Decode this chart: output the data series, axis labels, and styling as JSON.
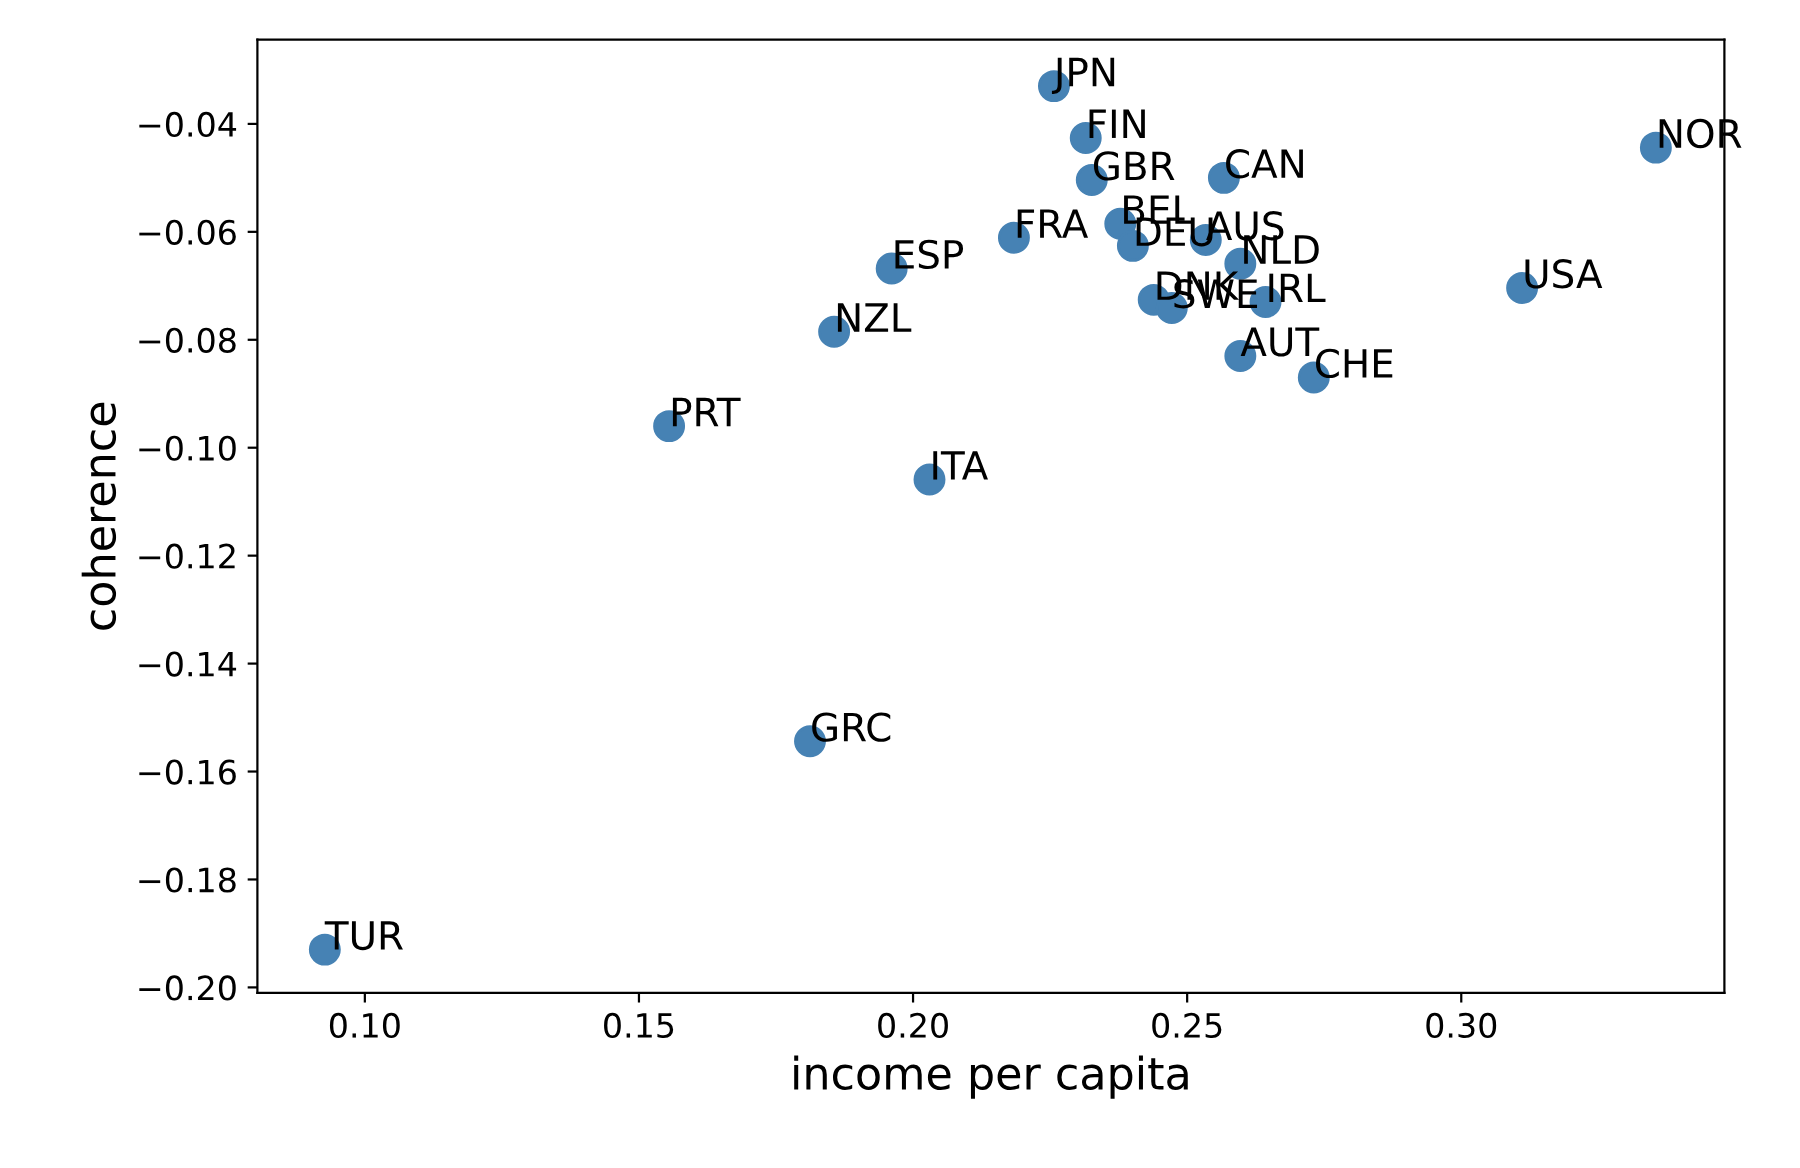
{
  "chart_data": {
    "type": "scatter",
    "xlabel": "income per capita",
    "ylabel": "coherence",
    "x": [
      0.2257,
      0.2315,
      0.2326,
      0.2567,
      0.2184,
      0.2378,
      0.2401,
      0.2534,
      0.2597,
      0.2439,
      0.2472,
      0.2643,
      0.2597,
      0.2731,
      0.3111,
      0.3355,
      0.1961,
      0.1856,
      0.1555,
      0.203,
      0.1812,
      0.0927
    ],
    "series": [
      {
        "color": "#4682b4",
        "values": [
          -0.033,
          -0.0426,
          -0.0504,
          -0.05,
          -0.0611,
          -0.0585,
          -0.0626,
          -0.0615,
          -0.0659,
          -0.0726,
          -0.0741,
          -0.073,
          -0.083,
          -0.087,
          -0.0704,
          -0.0444,
          -0.0668,
          -0.0785,
          -0.096,
          -0.1059,
          -0.1544,
          -0.193
        ]
      }
    ],
    "annotations": [
      {
        "text": "JPN",
        "x": 0.2257,
        "y": -0.033
      },
      {
        "text": "FIN",
        "x": 0.2315,
        "y": -0.0426
      },
      {
        "text": "GBR",
        "x": 0.2326,
        "y": -0.0504
      },
      {
        "text": "CAN",
        "x": 0.2567,
        "y": -0.05
      },
      {
        "text": "FRA",
        "x": 0.2184,
        "y": -0.0611
      },
      {
        "text": "BEL",
        "x": 0.2378,
        "y": -0.0585
      },
      {
        "text": "DEU",
        "x": 0.2401,
        "y": -0.0626
      },
      {
        "text": "AUS",
        "x": 0.2534,
        "y": -0.0615
      },
      {
        "text": "NLD",
        "x": 0.2597,
        "y": -0.0659
      },
      {
        "text": "DNK",
        "x": 0.2439,
        "y": -0.0726
      },
      {
        "text": "SWE",
        "x": 0.2472,
        "y": -0.0741
      },
      {
        "text": "IRL",
        "x": 0.2643,
        "y": -0.073
      },
      {
        "text": "AUT",
        "x": 0.2597,
        "y": -0.083
      },
      {
        "text": "CHE",
        "x": 0.2731,
        "y": -0.087
      },
      {
        "text": "USA",
        "x": 0.3111,
        "y": -0.0704
      },
      {
        "text": "NOR",
        "x": 0.3355,
        "y": -0.0444
      },
      {
        "text": "ESP",
        "x": 0.1961,
        "y": -0.0668
      },
      {
        "text": "NZL",
        "x": 0.1856,
        "y": -0.0785
      },
      {
        "text": "PRT",
        "x": 0.1555,
        "y": -0.096
      },
      {
        "text": "ITA",
        "x": 0.203,
        "y": -0.1059
      },
      {
        "text": "GRC",
        "x": 0.1812,
        "y": -0.1544
      },
      {
        "text": "TUR",
        "x": 0.0927,
        "y": -0.193
      }
    ],
    "xlim": [
      0.0804,
      0.348
    ],
    "ylim": [
      -0.201,
      -0.0244
    ],
    "xticks": [
      {
        "value": 0.1,
        "label": "0.10"
      },
      {
        "value": 0.15,
        "label": "0.15"
      },
      {
        "value": 0.2,
        "label": "0.20"
      },
      {
        "value": 0.25,
        "label": "0.25"
      },
      {
        "value": 0.3,
        "label": "0.30"
      }
    ],
    "yticks": [
      {
        "value": -0.2,
        "label": "−0.20"
      },
      {
        "value": -0.18,
        "label": "−0.18"
      },
      {
        "value": -0.16,
        "label": "−0.16"
      },
      {
        "value": -0.14,
        "label": "−0.14"
      },
      {
        "value": -0.12,
        "label": "−0.12"
      },
      {
        "value": -0.1,
        "label": "−0.10"
      },
      {
        "value": -0.08,
        "label": "−0.08"
      },
      {
        "value": -0.06,
        "label": "−0.06"
      },
      {
        "value": -0.04,
        "label": "−0.04"
      }
    ],
    "marker": "circle",
    "grid": false
  }
}
